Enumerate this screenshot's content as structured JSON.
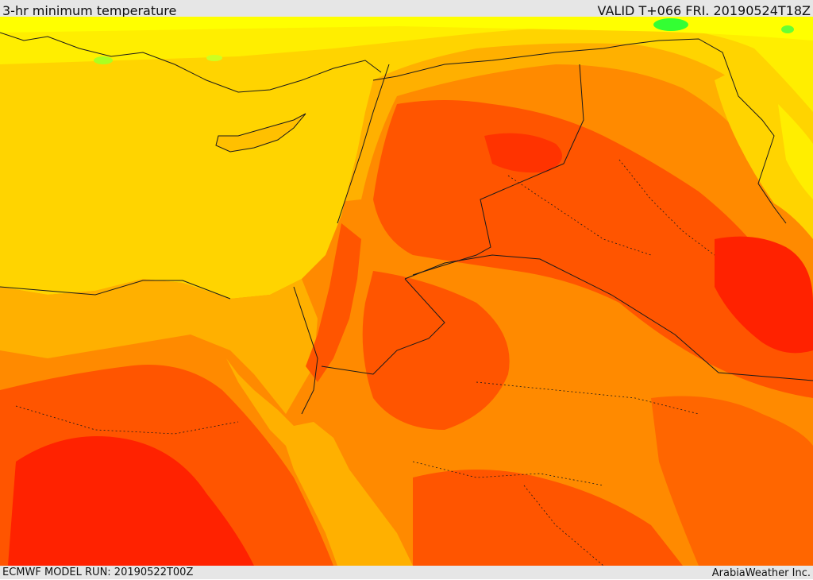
{
  "header": {
    "title": "3-hr minimum temperature",
    "valid": "VALID T+066 FRI. 20190524T18Z"
  },
  "footer": {
    "model_run": "ECMWF MODEL RUN: 20190522T00Z",
    "credit": "ArabiaWeather Inc."
  },
  "colors": {
    "sea": "#ffd400",
    "warm_coast": "#ffb000",
    "land_warm": "#ff9900",
    "land_hot": "#ff7700",
    "land_hotter": "#ff5500",
    "land_hottest": "#ff2200",
    "cool_highland": "#ffff00",
    "cold_spot": "#33ff33",
    "border_line": "#1a1a1a"
  }
}
